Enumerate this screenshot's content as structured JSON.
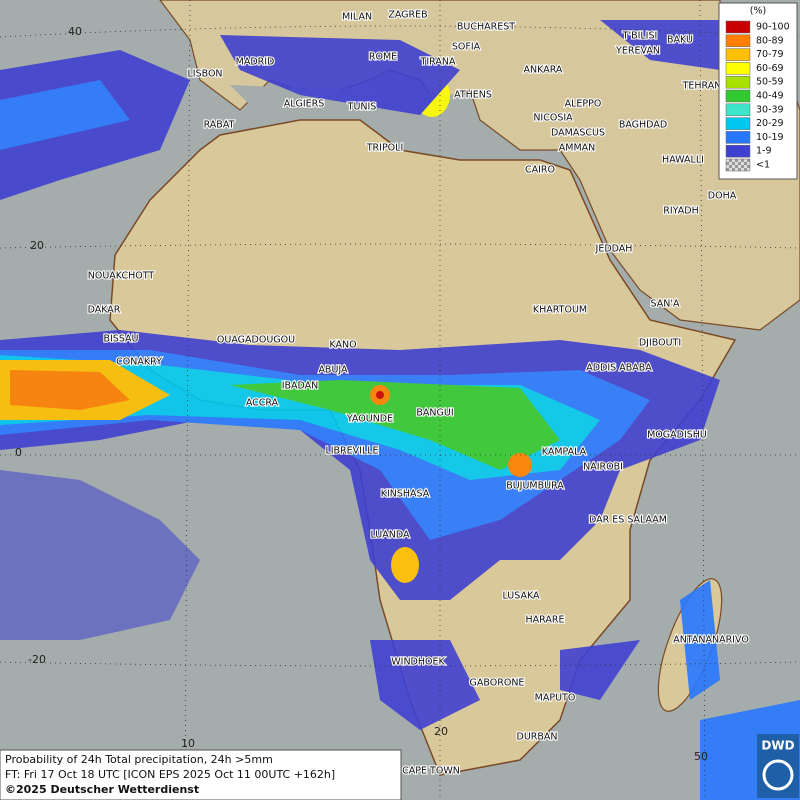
{
  "legend": {
    "title": "(%)",
    "entries": [
      {
        "label": "90-100",
        "color": "#c80000"
      },
      {
        "label": "80-89",
        "color": "#ff8000"
      },
      {
        "label": "70-79",
        "color": "#ffc000"
      },
      {
        "label": "60-69",
        "color": "#ffff00"
      },
      {
        "label": "50-59",
        "color": "#a8e000"
      },
      {
        "label": "40-49",
        "color": "#32c832"
      },
      {
        "label": "30-39",
        "color": "#3ce6c8"
      },
      {
        "label": "20-29",
        "color": "#00c8f0"
      },
      {
        "label": "10-19",
        "color": "#2878ff"
      },
      {
        "label": "1-9",
        "color": "#4040d0"
      },
      {
        "label": "<1",
        "color": "#bbbbbb"
      }
    ]
  },
  "latitude_labels": [
    "40",
    "20",
    "0",
    "-20"
  ],
  "longitude_labels": [
    "10",
    "20",
    "50"
  ],
  "cities": [
    "MILAN",
    "ZAGREB",
    "BUCHAREST",
    "T'BILISI",
    "BAKU",
    "LISBON",
    "MADRID",
    "ROME",
    "SOFIA",
    "TIRANA",
    "ANKARA",
    "YEREVAN",
    "TEHRAN",
    "ALGIERS",
    "TUNIS",
    "ATHENS",
    "ALEPPO",
    "RABAT",
    "NICOSIA",
    "BAGHDAD",
    "DAMASCUS",
    "AMMAN",
    "TRIPOLI",
    "HAWALLI",
    "CAIRO",
    "DOHA",
    "RIYADH",
    "JEDDAH",
    "NOUAKCHOTT",
    "DAKAR",
    "SAN'A",
    "KHARTOUM",
    "BISSAU",
    "OUAGADOUGOU",
    "DJIBOUTI",
    "KANO",
    "CONAKRY",
    "ABUJA",
    "ADDIS ABABA",
    "IBADAN",
    "ACCRA",
    "BANGUI",
    "YAOUNDE",
    "MOGADISHU",
    "LIBREVILLE",
    "KAMPALA",
    "NAIROBI",
    "BUJUMBURA",
    "KINSHASA",
    "DAR ES SALAAM",
    "LUANDA",
    "LUSAKA",
    "HARARE",
    "ANTANANARIVO",
    "WINDHOEK",
    "GABORONE",
    "MAPUTO",
    "DURBAN",
    "CAPE TOWN"
  ],
  "footer": {
    "line1": "Probability of 24h Total precipitation, 24h >5mm",
    "line2": "FT: Fri 17 Oct 18 UTC [ICON EPS 2025 Oct 11 00UTC +162h]",
    "line3": "©2025 Deutscher Wetterdienst"
  },
  "logo": "DWD"
}
